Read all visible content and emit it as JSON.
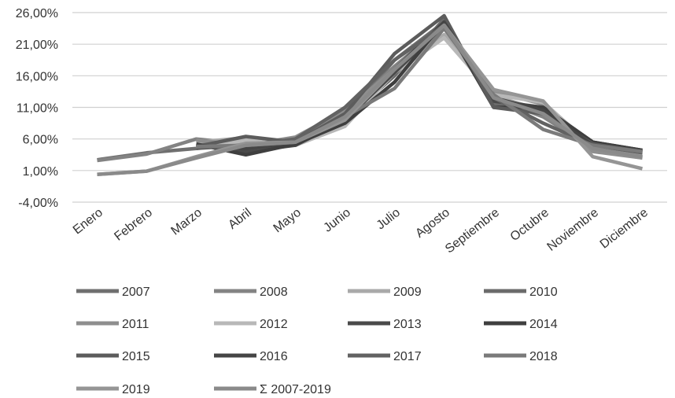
{
  "chart_data": {
    "type": "line",
    "title": "",
    "xlabel": "",
    "ylabel": "",
    "ylim": [
      -4,
      26
    ],
    "y_ticks": [
      "26,00%",
      "21,00%",
      "16,00%",
      "11,00%",
      "6,00%",
      "1,00%",
      "-4,00%"
    ],
    "y_tick_values": [
      26,
      21,
      16,
      11,
      6,
      1,
      -4
    ],
    "categories": [
      "Enero",
      "Febrero",
      "Marzo",
      "Abril",
      "Mayo",
      "Junio",
      "Julio",
      "Agosto",
      "Septiembre",
      "Octubre",
      "Noviembre",
      "Diciembre"
    ],
    "grid": "horizontal",
    "legend_position": "bottom",
    "series": [
      {
        "name": "2007",
        "color": "#6f6f6f",
        "values": [
          2.7,
          3.8,
          4.5,
          5.8,
          5.3,
          9.5,
          18.5,
          24.5,
          12.0,
          10.5,
          5.0,
          4.0
        ]
      },
      {
        "name": "2008",
        "color": "#838383",
        "values": [
          2.6,
          3.6,
          6.0,
          5.2,
          5.7,
          10.0,
          17.5,
          24.0,
          12.5,
          9.5,
          4.5,
          3.6
        ]
      },
      {
        "name": "2009",
        "color": "#a9a9a9",
        "values": [
          null,
          null,
          5.5,
          6.2,
          5.0,
          8.8,
          17.0,
          22.5,
          12.8,
          10.5,
          4.2,
          3.0
        ]
      },
      {
        "name": "2010",
        "color": "#6b6b6b",
        "values": [
          null,
          null,
          5.0,
          5.5,
          5.8,
          9.0,
          16.0,
          25.0,
          11.5,
          11.0,
          5.5,
          4.0
        ]
      },
      {
        "name": "2011",
        "color": "#8e8e8e",
        "values": [
          null,
          null,
          5.8,
          5.0,
          6.3,
          10.5,
          17.0,
          23.5,
          13.5,
          11.5,
          4.0,
          3.0
        ]
      },
      {
        "name": "2012",
        "color": "#b8b8b8",
        "values": [
          null,
          null,
          4.5,
          5.8,
          5.0,
          8.0,
          16.5,
          22.0,
          13.0,
          11.8,
          4.8,
          3.4
        ]
      },
      {
        "name": "2013",
        "color": "#4a4a4a",
        "values": [
          null,
          null,
          5.0,
          4.0,
          5.0,
          9.0,
          16.5,
          24.0,
          12.0,
          11.0,
          5.5,
          4.2
        ]
      },
      {
        "name": "2014",
        "color": "#3f3f3f",
        "values": [
          null,
          null,
          5.2,
          3.5,
          5.2,
          8.5,
          15.0,
          24.5,
          11.0,
          11.0,
          5.5,
          4.2
        ]
      },
      {
        "name": "2015",
        "color": "#5c5c5c",
        "values": [
          null,
          null,
          4.8,
          6.4,
          5.5,
          10.0,
          19.5,
          25.5,
          11.0,
          10.0,
          5.2,
          4.0
        ]
      },
      {
        "name": "2016",
        "color": "#454545",
        "values": [
          null,
          null,
          5.0,
          4.5,
          5.5,
          9.0,
          17.0,
          24.5,
          12.5,
          10.5,
          5.0,
          4.0
        ]
      },
      {
        "name": "2017",
        "color": "#626262",
        "values": [
          null,
          null,
          4.5,
          5.0,
          6.0,
          11.0,
          18.5,
          24.0,
          12.5,
          8.5,
          5.0,
          3.8
        ]
      },
      {
        "name": "2018",
        "color": "#7a7a7a",
        "values": [
          null,
          null,
          4.8,
          5.0,
          5.5,
          9.5,
          14.0,
          23.5,
          13.0,
          7.5,
          5.0,
          4.0
        ]
      },
      {
        "name": "2019",
        "color": "#959595",
        "values": [
          0.4,
          0.9,
          3.2,
          5.3,
          5.5,
          9.0,
          17.0,
          24.0,
          13.8,
          12.0,
          3.2,
          1.3
        ]
      },
      {
        "name": "Σ 2007-2019",
        "color": "#8a8a8a",
        "values": [
          0.4,
          0.9,
          3.0,
          5.0,
          5.5,
          9.5,
          17.0,
          24.0,
          12.5,
          10.0,
          4.5,
          3.2
        ]
      }
    ]
  }
}
